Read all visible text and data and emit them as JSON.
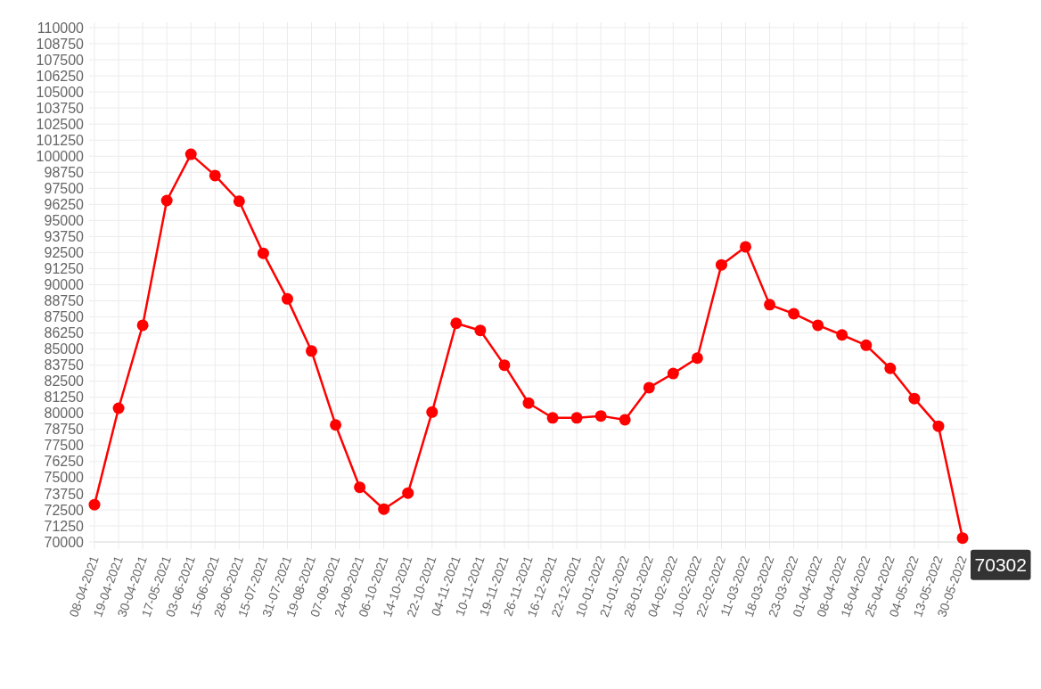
{
  "chart_data": {
    "type": "line",
    "categories": [
      "08-04-2021",
      "19-04-2021",
      "30-04-2021",
      "17-05-2021",
      "03-06-2021",
      "15-06-2021",
      "28-06-2021",
      "15-07-2021",
      "31-07-2021",
      "19-08-2021",
      "07-09-2021",
      "24-09-2021",
      "06-10-2021",
      "14-10-2021",
      "22-10-2021",
      "04-11-2021",
      "10-11-2021",
      "19-11-2021",
      "26-11-2021",
      "16-12-2021",
      "22-12-2021",
      "10-01-2022",
      "21-01-2022",
      "28-01-2022",
      "04-02-2022",
      "10-02-2022",
      "22-02-2022",
      "11-03-2022",
      "18-03-2022",
      "23-03-2022",
      "01-04-2022",
      "08-04-2022",
      "18-04-2022",
      "25-04-2022",
      "04-05-2022",
      "13-05-2022",
      "30-05-2022"
    ],
    "series": [
      {
        "color": "#ff0000",
        "values": [
          72900,
          80400,
          86850,
          96550,
          100150,
          98500,
          96500,
          92450,
          88900,
          84850,
          79100,
          74250,
          72550,
          73800,
          80100,
          87000,
          86450,
          83750,
          80800,
          79650,
          79650,
          79800,
          79500,
          82000,
          83100,
          84300,
          91550,
          92950,
          88450,
          87750,
          86850,
          86100,
          85300,
          83500,
          81150,
          79000,
          70302
        ]
      }
    ],
    "ylim": [
      70000,
      110000
    ],
    "yticks": [
      70000,
      71250,
      72500,
      73750,
      75000,
      76250,
      77500,
      78750,
      80000,
      81250,
      82500,
      83750,
      85000,
      86250,
      87500,
      88750,
      90000,
      91250,
      92500,
      93750,
      95000,
      96250,
      97500,
      98750,
      100000,
      101250,
      102500,
      103750,
      105000,
      106250,
      107500,
      108750,
      110000
    ],
    "grid": true,
    "marker": "circle",
    "annotations": [
      {
        "text": "70302",
        "x": "30-05-2022",
        "y": 70302
      }
    ]
  }
}
